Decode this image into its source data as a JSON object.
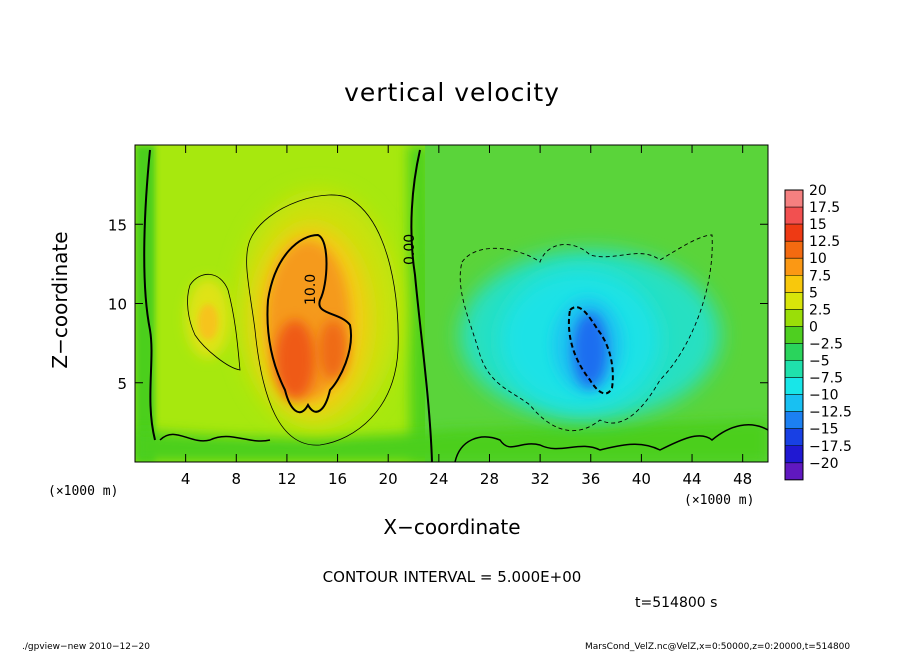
{
  "chart_data": {
    "type": "heatmap",
    "title": "vertical velocity",
    "xlabel": "X-coordinate",
    "ylabel": "Z-coordinate",
    "x_unit_label": "(×1000 m)",
    "x_ticks": [
      4,
      8,
      12,
      16,
      20,
      24,
      28,
      32,
      36,
      40,
      44,
      48
    ],
    "y_ticks": [
      5,
      10,
      15
    ],
    "xlim": [
      0,
      50
    ],
    "ylim": [
      0,
      20
    ],
    "colorbar": {
      "labels": [
        "20",
        "17.5",
        "15",
        "12.5",
        "10",
        "7.5",
        "5",
        "2.5",
        "0",
        "−2.5",
        "−5",
        "−7.5",
        "−10",
        "−12.5",
        "−15",
        "−17.5",
        "−20"
      ],
      "levels": [
        20,
        17.5,
        15,
        12.5,
        10,
        7.5,
        5,
        2.5,
        0,
        -2.5,
        -5,
        -7.5,
        -10,
        -12.5,
        -15,
        -17.5,
        -20
      ],
      "colors": [
        "#f58080",
        "#f25050",
        "#ee3a14",
        "#f36a10",
        "#fb9814",
        "#f8c80c",
        "#d8e50a",
        "#9ade08",
        "#4ecf20",
        "#2ad45c",
        "#1fe1ac",
        "#18e6e8",
        "#18c0f2",
        "#1c80f2",
        "#1840e4",
        "#2018d2",
        "#6018c0"
      ]
    },
    "features": [
      {
        "kind": "updraft",
        "x": 13,
        "z": 8,
        "max": 15,
        "contour_label": "10.0"
      },
      {
        "kind": "updraft",
        "x": 6,
        "z": 9,
        "max": 7
      },
      {
        "kind": "downdraft",
        "x": 35,
        "z": 8,
        "min": -12
      },
      {
        "kind": "zero-contour",
        "contour_label": "0.00"
      }
    ],
    "contour_interval": 5
  },
  "text": {
    "title": "vertical velocity",
    "ylabel": "Z−coordinate",
    "xlabel": "X−coordinate",
    "x_unit_left": "(×1000 m)",
    "x_unit_right": "(×1000 m)",
    "contour_note": "CONTOUR INTERVAL = 5.000E+00",
    "time_label": "t=514800  s",
    "footer_left": "./gpview−new   2010−12−20",
    "footer_right": "MarsCond_VelZ.nc@VelZ,x=0:50000,z=0:20000,t=514800",
    "label_updraft": "10.0",
    "label_zero": "0.00"
  }
}
